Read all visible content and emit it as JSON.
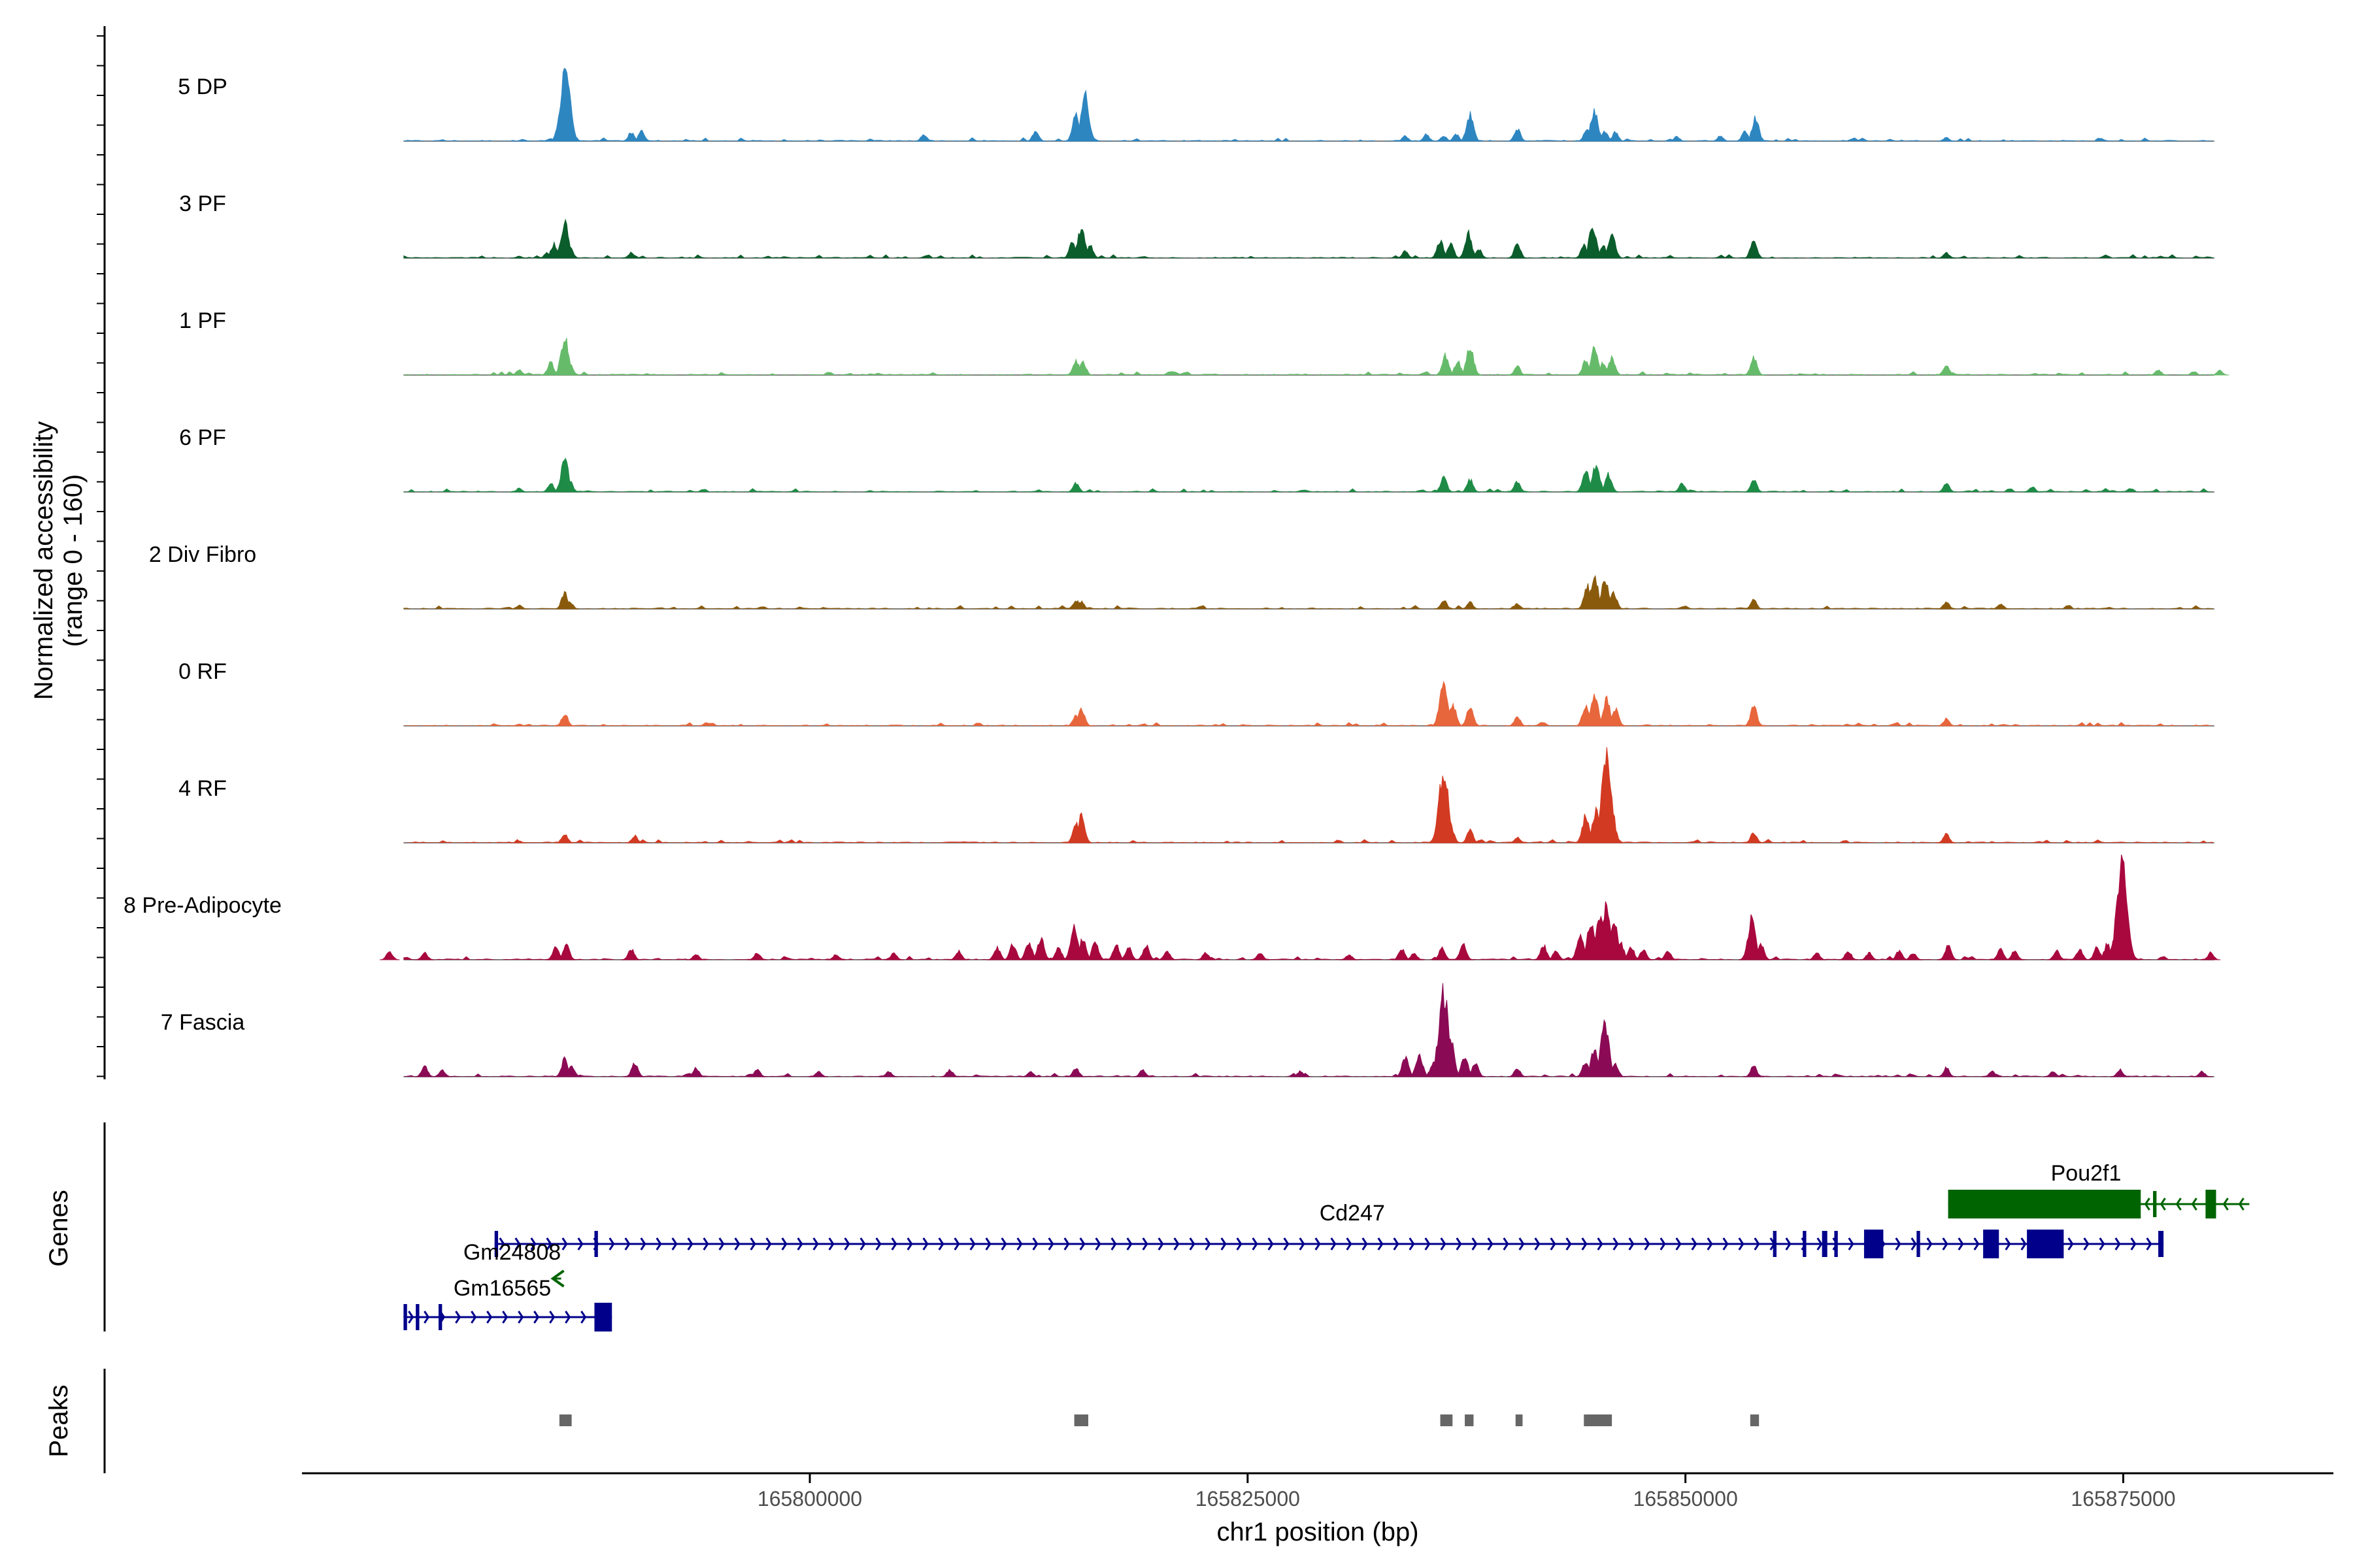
{
  "chart_data": {
    "type": "coverage",
    "title": "",
    "y_axis_label": [
      "Normalized accessibility",
      "(range 0 - 160)"
    ],
    "y_range": [
      0,
      160
    ],
    "x_axis_label": "chr1 position (bp)",
    "x_range": [
      165771000,
      165887000
    ],
    "x_ticks": [
      165800000,
      165825000,
      165850000,
      165875000
    ],
    "track_colors": [
      "#2E86C1",
      "#0B5D2B",
      "#66BB6A",
      "#1E8C46",
      "#8A5A0C",
      "#E8663C",
      "#D33A22",
      "#A8083E",
      "#8B0A55"
    ],
    "tracks": [
      {
        "label": "5 DP",
        "peaks": [
          [
            165783600,
            2
          ],
          [
            165785200,
            3
          ],
          [
            165785800,
            35
          ],
          [
            165786050,
            82
          ],
          [
            165786300,
            22
          ],
          [
            165789800,
            10
          ],
          [
            165790400,
            12
          ],
          [
            165806500,
            8
          ],
          [
            165812900,
            12
          ],
          [
            165815200,
            30
          ],
          [
            165815700,
            52
          ],
          [
            165815900,
            18
          ],
          [
            165834000,
            6
          ],
          [
            165835200,
            8
          ],
          [
            165836200,
            6
          ],
          [
            165836900,
            8
          ],
          [
            165837700,
            30
          ],
          [
            165840400,
            14
          ],
          [
            165844400,
            16
          ],
          [
            165844800,
            36
          ],
          [
            165845400,
            12
          ],
          [
            165846000,
            10
          ],
          [
            165849500,
            5
          ],
          [
            165852000,
            6
          ],
          [
            165853400,
            12
          ],
          [
            165854000,
            26
          ],
          [
            165864900,
            4
          ]
        ]
      },
      {
        "label": "3 PF",
        "peaks": [
          [
            165783400,
            2
          ],
          [
            165785000,
            6
          ],
          [
            165785400,
            16
          ],
          [
            165786000,
            40
          ],
          [
            165786300,
            12
          ],
          [
            165789800,
            6
          ],
          [
            165815000,
            18
          ],
          [
            165815500,
            34
          ],
          [
            165816000,
            14
          ],
          [
            165834000,
            8
          ],
          [
            165836000,
            20
          ],
          [
            165836600,
            16
          ],
          [
            165837600,
            28
          ],
          [
            165838200,
            10
          ],
          [
            165840400,
            16
          ],
          [
            165844200,
            14
          ],
          [
            165844700,
            36
          ],
          [
            165845300,
            14
          ],
          [
            165845800,
            28
          ],
          [
            165853900,
            20
          ],
          [
            165864900,
            6
          ]
        ]
      },
      {
        "label": "1 PF",
        "peaks": [
          [
            165783400,
            6
          ],
          [
            165785200,
            14
          ],
          [
            165786000,
            42
          ],
          [
            165786300,
            12
          ],
          [
            165815200,
            16
          ],
          [
            165815600,
            14
          ],
          [
            165836300,
            22
          ],
          [
            165837000,
            16
          ],
          [
            165837700,
            32
          ],
          [
            165840400,
            10
          ],
          [
            165844300,
            16
          ],
          [
            165844800,
            30
          ],
          [
            165845300,
            14
          ],
          [
            165845800,
            20
          ],
          [
            165853900,
            20
          ],
          [
            165864900,
            12
          ],
          [
            165877000,
            6
          ],
          [
            165880500,
            5
          ]
        ]
      },
      {
        "label": "6 PF",
        "peaks": [
          [
            165783400,
            4
          ],
          [
            165785200,
            10
          ],
          [
            165786000,
            38
          ],
          [
            165786300,
            12
          ],
          [
            165815200,
            10
          ],
          [
            165836200,
            16
          ],
          [
            165837700,
            14
          ],
          [
            165840400,
            12
          ],
          [
            165844300,
            24
          ],
          [
            165844900,
            32
          ],
          [
            165845600,
            20
          ],
          [
            165849800,
            10
          ],
          [
            165853900,
            14
          ],
          [
            165864900,
            10
          ],
          [
            165869800,
            6
          ]
        ]
      },
      {
        "label": "2 Div Fibro",
        "peaks": [
          [
            165783400,
            4
          ],
          [
            165786000,
            18
          ],
          [
            165786300,
            8
          ],
          [
            165815200,
            10
          ],
          [
            165815500,
            8
          ],
          [
            165836200,
            10
          ],
          [
            165837700,
            8
          ],
          [
            165840400,
            6
          ],
          [
            165844400,
            26
          ],
          [
            165844800,
            38
          ],
          [
            165845400,
            32
          ],
          [
            165845900,
            18
          ],
          [
            165853900,
            10
          ],
          [
            165864900,
            8
          ],
          [
            165868000,
            6
          ]
        ]
      },
      {
        "label": "0 RF",
        "peaks": [
          [
            165783400,
            2
          ],
          [
            165786000,
            14
          ],
          [
            165815200,
            12
          ],
          [
            165815500,
            20
          ],
          [
            165836200,
            52
          ],
          [
            165836700,
            26
          ],
          [
            165837700,
            22
          ],
          [
            165840400,
            10
          ],
          [
            165844300,
            22
          ],
          [
            165844800,
            36
          ],
          [
            165845500,
            30
          ],
          [
            165846000,
            20
          ],
          [
            165853900,
            22
          ],
          [
            165864900,
            8
          ]
        ]
      },
      {
        "label": "4 RF",
        "peaks": [
          [
            165783400,
            2
          ],
          [
            165786000,
            10
          ],
          [
            165790000,
            8
          ],
          [
            165815200,
            22
          ],
          [
            165815500,
            30
          ],
          [
            165836200,
            82
          ],
          [
            165836600,
            18
          ],
          [
            165837700,
            14
          ],
          [
            165840400,
            6
          ],
          [
            165844300,
            30
          ],
          [
            165844900,
            36
          ],
          [
            165845500,
            98
          ],
          [
            165853900,
            12
          ],
          [
            165864900,
            10
          ]
        ]
      },
      {
        "label": "8 Pre-Adipocyte",
        "peaks": [
          [
            165776000,
            10
          ],
          [
            165778000,
            8
          ],
          [
            165785500,
            14
          ],
          [
            165786100,
            16
          ],
          [
            165789800,
            12
          ],
          [
            165793500,
            6
          ],
          [
            165797000,
            8
          ],
          [
            165801500,
            6
          ],
          [
            165804800,
            8
          ],
          [
            165808500,
            10
          ],
          [
            165810700,
            14
          ],
          [
            165811600,
            18
          ],
          [
            165812500,
            20
          ],
          [
            165813200,
            24
          ],
          [
            165814200,
            14
          ],
          [
            165815100,
            36
          ],
          [
            165815600,
            24
          ],
          [
            165816300,
            20
          ],
          [
            165817500,
            16
          ],
          [
            165818200,
            14
          ],
          [
            165819200,
            16
          ],
          [
            165820400,
            10
          ],
          [
            165822600,
            8
          ],
          [
            165825700,
            8
          ],
          [
            165830800,
            6
          ],
          [
            165833800,
            12
          ],
          [
            165834500,
            8
          ],
          [
            165836100,
            14
          ],
          [
            165837300,
            18
          ],
          [
            165841900,
            16
          ],
          [
            165842600,
            10
          ],
          [
            165844000,
            30
          ],
          [
            165844600,
            42
          ],
          [
            165845100,
            50
          ],
          [
            165845500,
            64
          ],
          [
            165845900,
            46
          ],
          [
            165846300,
            20
          ],
          [
            165846900,
            14
          ],
          [
            165847600,
            12
          ],
          [
            165849000,
            10
          ],
          [
            165853800,
            46
          ],
          [
            165854300,
            18
          ],
          [
            165857500,
            8
          ],
          [
            165859300,
            10
          ],
          [
            165860500,
            8
          ],
          [
            165862200,
            10
          ],
          [
            165863000,
            8
          ],
          [
            165865000,
            16
          ],
          [
            165868000,
            12
          ],
          [
            165868800,
            10
          ],
          [
            165871200,
            10
          ],
          [
            165872500,
            12
          ],
          [
            165873500,
            14
          ],
          [
            165874100,
            18
          ],
          [
            165874500,
            22
          ],
          [
            165874920,
            105
          ],
          [
            165880000,
            8
          ]
        ]
      },
      {
        "label": "7 Fascia",
        "peaks": [
          [
            165778000,
            12
          ],
          [
            165779000,
            8
          ],
          [
            165786000,
            20
          ],
          [
            165786400,
            12
          ],
          [
            165790000,
            16
          ],
          [
            165793500,
            10
          ],
          [
            165797000,
            8
          ],
          [
            165800500,
            6
          ],
          [
            165804500,
            6
          ],
          [
            165808000,
            8
          ],
          [
            165812600,
            6
          ],
          [
            165815200,
            10
          ],
          [
            165819000,
            8
          ],
          [
            165828000,
            6
          ],
          [
            165834000,
            22
          ],
          [
            165834800,
            26
          ],
          [
            165835600,
            16
          ],
          [
            165836200,
            95
          ],
          [
            165836600,
            40
          ],
          [
            165837400,
            24
          ],
          [
            165838000,
            16
          ],
          [
            165840400,
            10
          ],
          [
            165844300,
            18
          ],
          [
            165844800,
            32
          ],
          [
            165845400,
            60
          ],
          [
            165846000,
            14
          ],
          [
            165853900,
            12
          ],
          [
            165864900,
            10
          ],
          [
            165867500,
            6
          ],
          [
            165871000,
            6
          ],
          [
            165874800,
            8
          ],
          [
            165879500,
            6
          ]
        ]
      }
    ],
    "genes_track_label": "Genes",
    "peaks_track_label": "Peaks",
    "genes": [
      {
        "name": "Cd247",
        "strand": "+",
        "start": 165782000,
        "end": 165877300,
        "color": "#00008B",
        "exons": [
          [
            165782000,
            165782200
          ],
          [
            165787700,
            165787900
          ],
          [
            165855000,
            165855200
          ],
          [
            165856700,
            165856900
          ],
          [
            165857800,
            165858100
          ],
          [
            165858500,
            165858700
          ],
          [
            165860200,
            165861300
          ],
          [
            165863200,
            165863400
          ],
          [
            165867000,
            165867900
          ],
          [
            165869500,
            165871600
          ],
          [
            165877000,
            165877300
          ]
        ]
      },
      {
        "name": "Pou2f1",
        "strand": "-",
        "start": 165865000,
        "end": 165882200,
        "color": "#006400",
        "exons": [
          [
            165865000,
            165876000
          ],
          [
            165876700,
            165876900
          ],
          [
            165879700,
            165880300
          ]
        ]
      },
      {
        "name": "Gm24808",
        "strand": "-",
        "start": 165785400,
        "end": 165785800,
        "color": "#006400",
        "exons": []
      },
      {
        "name": "Gm16565",
        "strand": "+",
        "start": 165776800,
        "end": 165788700,
        "color": "#00008B",
        "exons": [
          [
            165776800,
            165777000
          ],
          [
            165777500,
            165777700
          ],
          [
            165778800,
            165779000
          ],
          [
            165787700,
            165788700
          ]
        ]
      }
    ],
    "peak_regions": [
      [
        165785700,
        165786400
      ],
      [
        165815100,
        165815900
      ],
      [
        165836000,
        165836700
      ],
      [
        165837400,
        165837900
      ],
      [
        165840300,
        165840700
      ],
      [
        165844200,
        165845800
      ],
      [
        165853700,
        165854200
      ]
    ]
  }
}
